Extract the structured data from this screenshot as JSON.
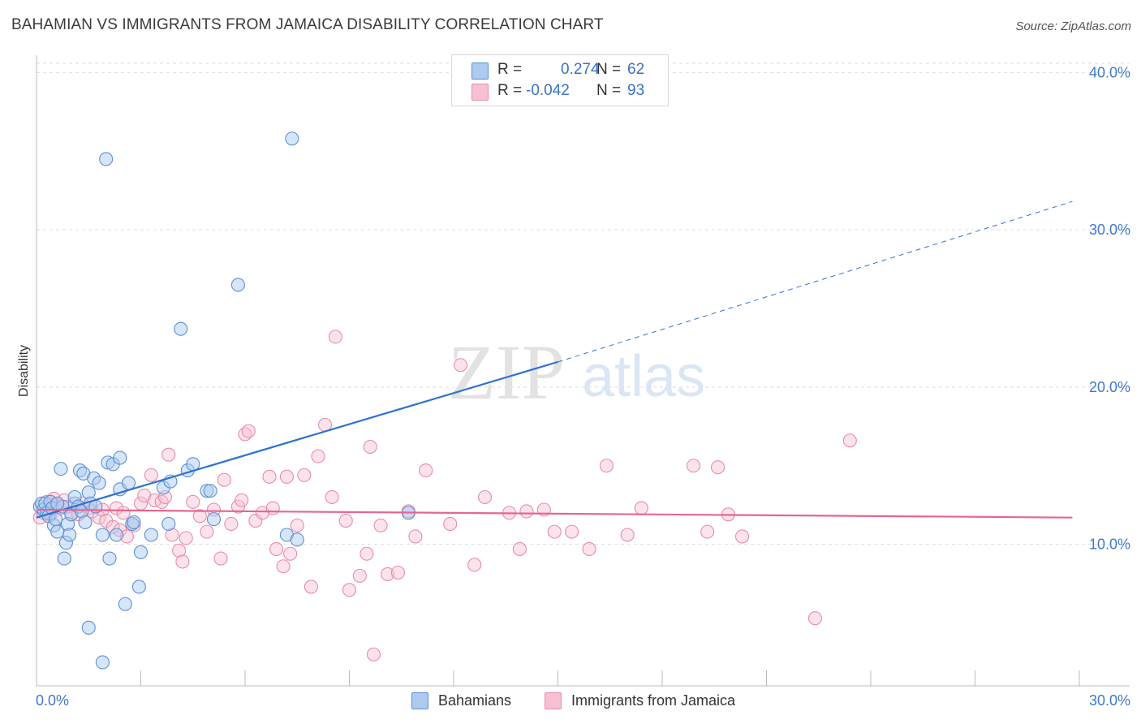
{
  "title": "BAHAMIAN VS IMMIGRANTS FROM JAMAICA DISABILITY CORRELATION CHART",
  "source": "Source: ZipAtlas.com",
  "watermark": {
    "zip": "ZIP",
    "atlas": "atlas"
  },
  "colors": {
    "blue_fill": "#aecbef",
    "blue_stroke": "#5a8fd6",
    "blue_line": "#2e72cf",
    "pink_fill": "#f7c0d2",
    "pink_stroke": "#e98aab",
    "pink_line": "#e5668f",
    "tick_text": "#3f78c8"
  },
  "stats": {
    "row1": {
      "r_label": "R =",
      "r_value": "0.274",
      "n_label": "N =",
      "n_value": "62"
    },
    "row2": {
      "r_label": "R =",
      "r_value": "-0.042",
      "n_label": "N =",
      "n_value": "93"
    }
  },
  "legend": {
    "series1": "Bahamians",
    "series2": "Immigrants from Jamaica"
  },
  "chart_data": {
    "type": "scatter",
    "title": "BAHAMIAN VS IMMIGRANTS FROM JAMAICA DISABILITY CORRELATION CHART",
    "xlabel": "",
    "ylabel": "Disability",
    "xlim": [
      0,
      30
    ],
    "ylim": [
      1.0,
      41.0
    ],
    "x_ticks": [
      "0.0%",
      "30.0%"
    ],
    "y_ticks": [
      {
        "value": 10,
        "label": "10.0%"
      },
      {
        "value": 20,
        "label": "20.0%"
      },
      {
        "value": 30,
        "label": "30.0%"
      },
      {
        "value": 40,
        "label": "40.0%"
      }
    ],
    "grid": "horizontal dashed",
    "legend_position": "bottom-center",
    "series": [
      {
        "name": "Bahamians",
        "color": "#5a8fd6",
        "trend": {
          "x0": 0.0,
          "y0": 11.7,
          "x1": 15.0,
          "y1": 21.6,
          "dashed_to_x": 29.8,
          "dashed_to_y": 31.8
        },
        "points": [
          [
            0.1,
            12.4
          ],
          [
            0.15,
            12.6
          ],
          [
            0.2,
            12.2
          ],
          [
            0.25,
            12.6
          ],
          [
            0.3,
            12.0
          ],
          [
            0.35,
            11.8
          ],
          [
            0.4,
            12.7
          ],
          [
            0.45,
            12.3
          ],
          [
            0.5,
            11.2
          ],
          [
            0.55,
            11.6
          ],
          [
            0.6,
            10.8
          ],
          [
            0.7,
            14.8
          ],
          [
            0.75,
            12.4
          ],
          [
            0.8,
            9.1
          ],
          [
            0.85,
            10.1
          ],
          [
            0.9,
            11.3
          ],
          [
            0.95,
            10.6
          ],
          [
            1.0,
            11.9
          ],
          [
            1.1,
            12.6
          ],
          [
            1.1,
            13.0
          ],
          [
            1.2,
            12.4
          ],
          [
            1.25,
            14.7
          ],
          [
            1.3,
            12.1
          ],
          [
            1.4,
            11.4
          ],
          [
            1.35,
            14.5
          ],
          [
            1.5,
            13.3
          ],
          [
            1.55,
            12.6
          ],
          [
            1.7,
            12.4
          ],
          [
            1.65,
            14.2
          ],
          [
            1.8,
            13.9
          ],
          [
            1.9,
            10.6
          ],
          [
            1.9,
            2.5
          ],
          [
            2.0,
            34.5
          ],
          [
            2.05,
            15.2
          ],
          [
            2.1,
            9.1
          ],
          [
            2.2,
            15.1
          ],
          [
            2.3,
            10.6
          ],
          [
            2.4,
            15.5
          ],
          [
            2.4,
            13.5
          ],
          [
            2.55,
            6.2
          ],
          [
            2.65,
            13.9
          ],
          [
            2.75,
            11.3
          ],
          [
            2.95,
            7.3
          ],
          [
            3.0,
            9.5
          ],
          [
            3.3,
            10.6
          ],
          [
            3.65,
            13.6
          ],
          [
            3.8,
            11.3
          ],
          [
            3.85,
            14.0
          ],
          [
            4.15,
            23.7
          ],
          [
            4.35,
            14.7
          ],
          [
            4.5,
            15.1
          ],
          [
            4.9,
            13.4
          ],
          [
            5.0,
            13.4
          ],
          [
            5.1,
            11.6
          ],
          [
            5.8,
            26.5
          ],
          [
            7.2,
            10.6
          ],
          [
            7.35,
            35.8
          ],
          [
            7.5,
            10.3
          ],
          [
            10.7,
            12.0
          ],
          [
            1.5,
            4.7
          ],
          [
            0.6,
            12.6
          ],
          [
            2.8,
            11.4
          ]
        ]
      },
      {
        "name": "Immigrants from Jamaica",
        "color": "#e98aab",
        "trend": {
          "x0": 0.0,
          "y0": 12.2,
          "x1": 29.8,
          "y1": 11.7
        },
        "points": [
          [
            0.1,
            11.7
          ],
          [
            0.2,
            12.0
          ],
          [
            0.3,
            12.7
          ],
          [
            0.4,
            11.9
          ],
          [
            0.5,
            12.9
          ],
          [
            0.6,
            12.5
          ],
          [
            0.7,
            12.3
          ],
          [
            0.8,
            12.8
          ],
          [
            1.0,
            12.0
          ],
          [
            1.2,
            11.9
          ],
          [
            1.3,
            12.6
          ],
          [
            1.5,
            12.3
          ],
          [
            1.6,
            12.1
          ],
          [
            1.8,
            11.7
          ],
          [
            1.9,
            12.2
          ],
          [
            2.0,
            11.5
          ],
          [
            2.2,
            11.1
          ],
          [
            2.3,
            12.3
          ],
          [
            2.4,
            10.9
          ],
          [
            2.6,
            10.5
          ],
          [
            2.8,
            11.2
          ],
          [
            3.0,
            12.6
          ],
          [
            3.1,
            13.1
          ],
          [
            3.3,
            14.4
          ],
          [
            3.4,
            12.8
          ],
          [
            3.6,
            12.7
          ],
          [
            3.7,
            13.0
          ],
          [
            3.8,
            15.7
          ],
          [
            3.9,
            10.6
          ],
          [
            4.1,
            9.6
          ],
          [
            4.3,
            10.4
          ],
          [
            4.5,
            12.7
          ],
          [
            4.7,
            11.8
          ],
          [
            4.9,
            10.8
          ],
          [
            5.1,
            12.2
          ],
          [
            5.3,
            9.1
          ],
          [
            5.4,
            14.1
          ],
          [
            5.6,
            11.3
          ],
          [
            5.8,
            12.4
          ],
          [
            5.9,
            12.8
          ],
          [
            6.0,
            17.0
          ],
          [
            6.1,
            17.2
          ],
          [
            6.3,
            11.5
          ],
          [
            6.5,
            12.0
          ],
          [
            6.7,
            14.3
          ],
          [
            6.8,
            12.3
          ],
          [
            6.9,
            9.7
          ],
          [
            7.1,
            8.6
          ],
          [
            7.2,
            14.3
          ],
          [
            7.3,
            9.4
          ],
          [
            7.5,
            11.2
          ],
          [
            7.7,
            14.4
          ],
          [
            7.9,
            7.3
          ],
          [
            8.1,
            15.6
          ],
          [
            8.3,
            17.6
          ],
          [
            8.5,
            13.0
          ],
          [
            8.6,
            23.2
          ],
          [
            8.9,
            11.5
          ],
          [
            9.0,
            7.1
          ],
          [
            9.3,
            8.0
          ],
          [
            9.5,
            9.4
          ],
          [
            9.6,
            16.2
          ],
          [
            9.9,
            11.2
          ],
          [
            10.1,
            8.1
          ],
          [
            10.4,
            8.2
          ],
          [
            10.7,
            12.1
          ],
          [
            10.9,
            10.5
          ],
          [
            11.2,
            14.7
          ],
          [
            11.9,
            11.3
          ],
          [
            12.2,
            21.4
          ],
          [
            12.6,
            8.7
          ],
          [
            12.9,
            13.0
          ],
          [
            13.6,
            12.0
          ],
          [
            13.9,
            9.7
          ],
          [
            14.1,
            12.1
          ],
          [
            14.6,
            12.2
          ],
          [
            14.9,
            10.8
          ],
          [
            15.4,
            10.8
          ],
          [
            15.9,
            9.7
          ],
          [
            16.4,
            15.0
          ],
          [
            17.0,
            10.6
          ],
          [
            17.4,
            12.3
          ],
          [
            18.9,
            15.0
          ],
          [
            19.3,
            10.8
          ],
          [
            19.6,
            14.9
          ],
          [
            19.9,
            11.9
          ],
          [
            20.3,
            10.5
          ],
          [
            22.4,
            5.3
          ],
          [
            23.4,
            16.6
          ],
          [
            9.7,
            3.0
          ],
          [
            4.2,
            8.9
          ],
          [
            2.5,
            12.0
          ],
          [
            0.9,
            12.4
          ]
        ]
      }
    ]
  }
}
